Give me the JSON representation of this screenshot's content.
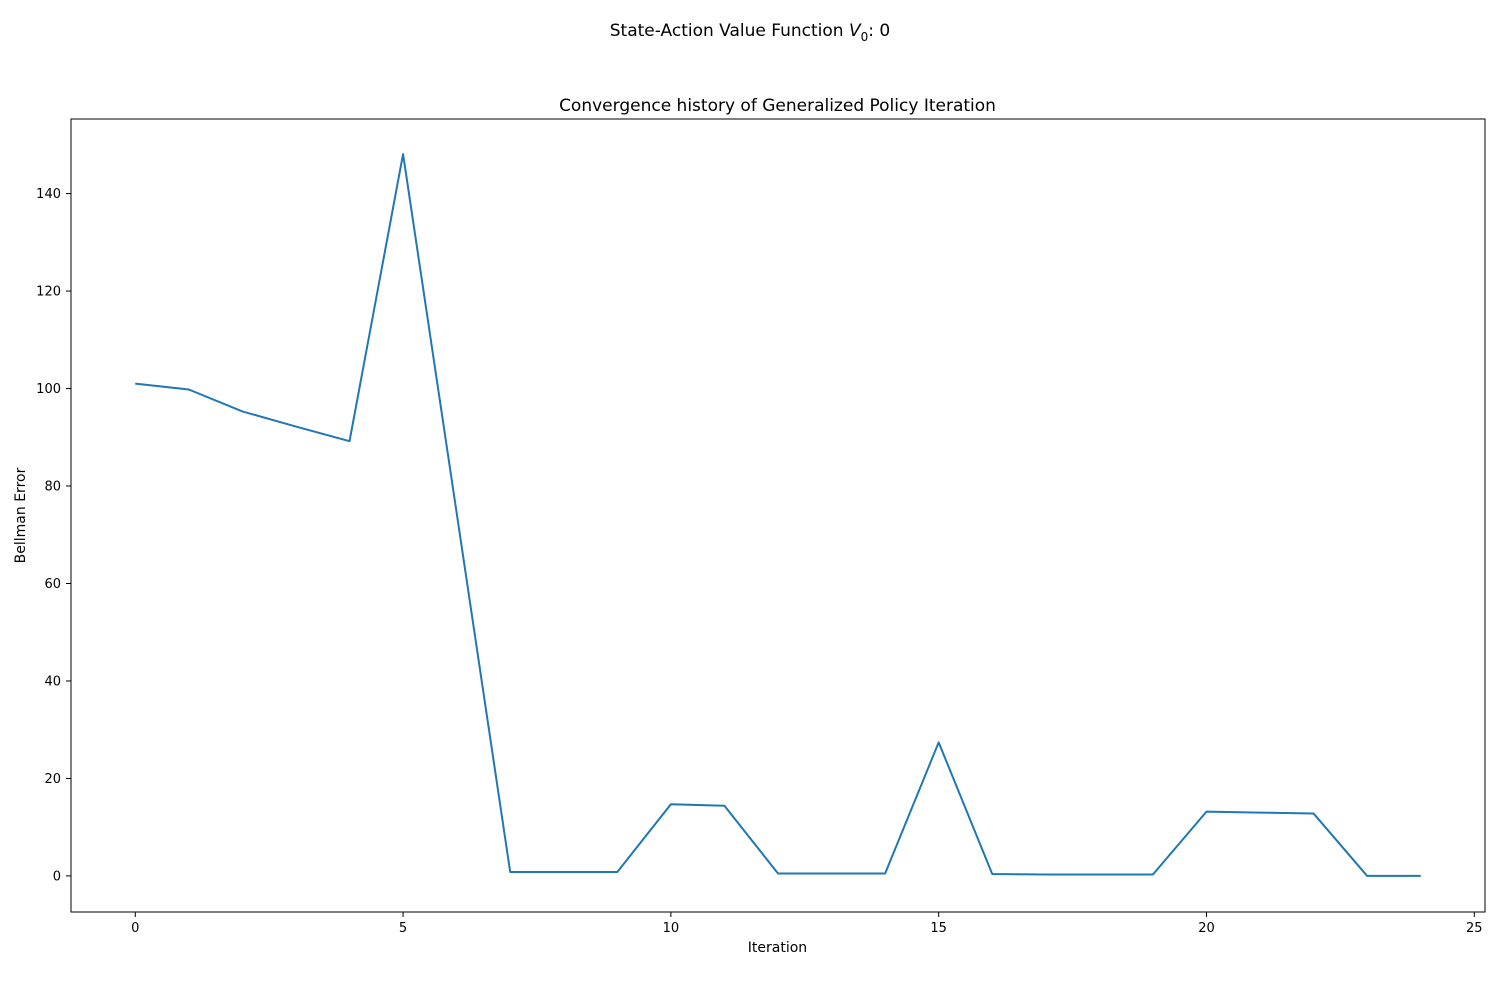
{
  "figure": {
    "suptitle_prefix": "State-Action Value Function ",
    "suptitle_var": "V",
    "suptitle_sub": "0",
    "suptitle_suffix": ": 0"
  },
  "chart_data": {
    "type": "line",
    "title": "Convergence history of Generalized Policy Iteration",
    "xlabel": "Iteration",
    "ylabel": "Bellman Error",
    "xlim": [
      -1.2,
      25.2
    ],
    "ylim": [
      -7.4,
      155.3
    ],
    "xticks": [
      0,
      5,
      10,
      15,
      20,
      25
    ],
    "yticks": [
      0,
      20,
      40,
      60,
      80,
      100,
      120,
      140
    ],
    "grid": false,
    "series": [
      {
        "color": "#1f77b4",
        "x": [
          0,
          1,
          2,
          3,
          4,
          5,
          6,
          7,
          8,
          9,
          10,
          11,
          12,
          13,
          14,
          15,
          16,
          17,
          18,
          19,
          20,
          21,
          22,
          23,
          24
        ],
        "y": [
          101.0,
          99.8,
          95.3,
          92.2,
          89.2,
          148.1,
          74.5,
          0.8,
          0.8,
          0.8,
          14.7,
          14.4,
          0.5,
          0.5,
          0.5,
          27.4,
          0.4,
          0.3,
          0.3,
          0.3,
          13.2,
          13.0,
          12.8,
          0.0,
          0.0
        ]
      }
    ]
  }
}
